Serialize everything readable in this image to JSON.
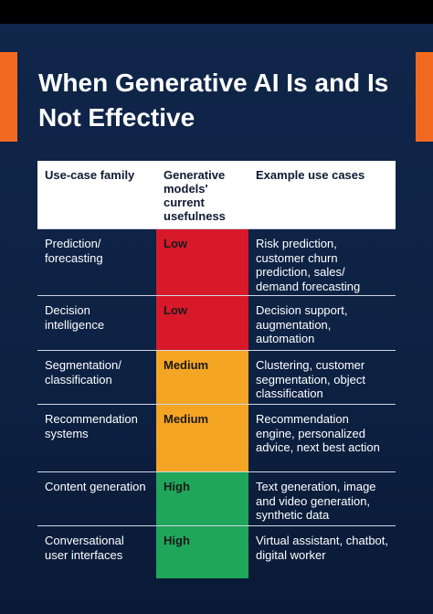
{
  "header": {
    "title": "When Generative AI Is and Is Not Effective"
  },
  "table": {
    "columns": [
      "Use-case family",
      "Generative models' current usefulness",
      "Example use cases"
    ],
    "rows": [
      {
        "family": "Prediction/ forecasting",
        "usefulness": "Low",
        "color": "#d8192a",
        "examples": "Risk prediction, customer churn prediction, sales/ demand forecasting"
      },
      {
        "family": "Decision intelligence",
        "usefulness": "Low",
        "color": "#d8192a",
        "examples": "Decision support, augmentation, automation"
      },
      {
        "family": "Segmentation/ classification",
        "usefulness": "Medium",
        "color": "#f5a524",
        "examples": "Clustering, customer segmentation, object classification"
      },
      {
        "family": "Recommendation systems",
        "usefulness": "Medium",
        "color": "#f5a524",
        "examples": "Recommendation engine, personalized advice, next best action"
      },
      {
        "family": "Content generation",
        "usefulness": "High",
        "color": "#1fa65a",
        "examples": "Text generation, image and video generation, synthetic data"
      },
      {
        "family": "Conversational user interfaces",
        "usefulness": "High",
        "color": "#1fa65a",
        "examples": "Virtual assistant, chatbot, digital worker"
      }
    ]
  }
}
